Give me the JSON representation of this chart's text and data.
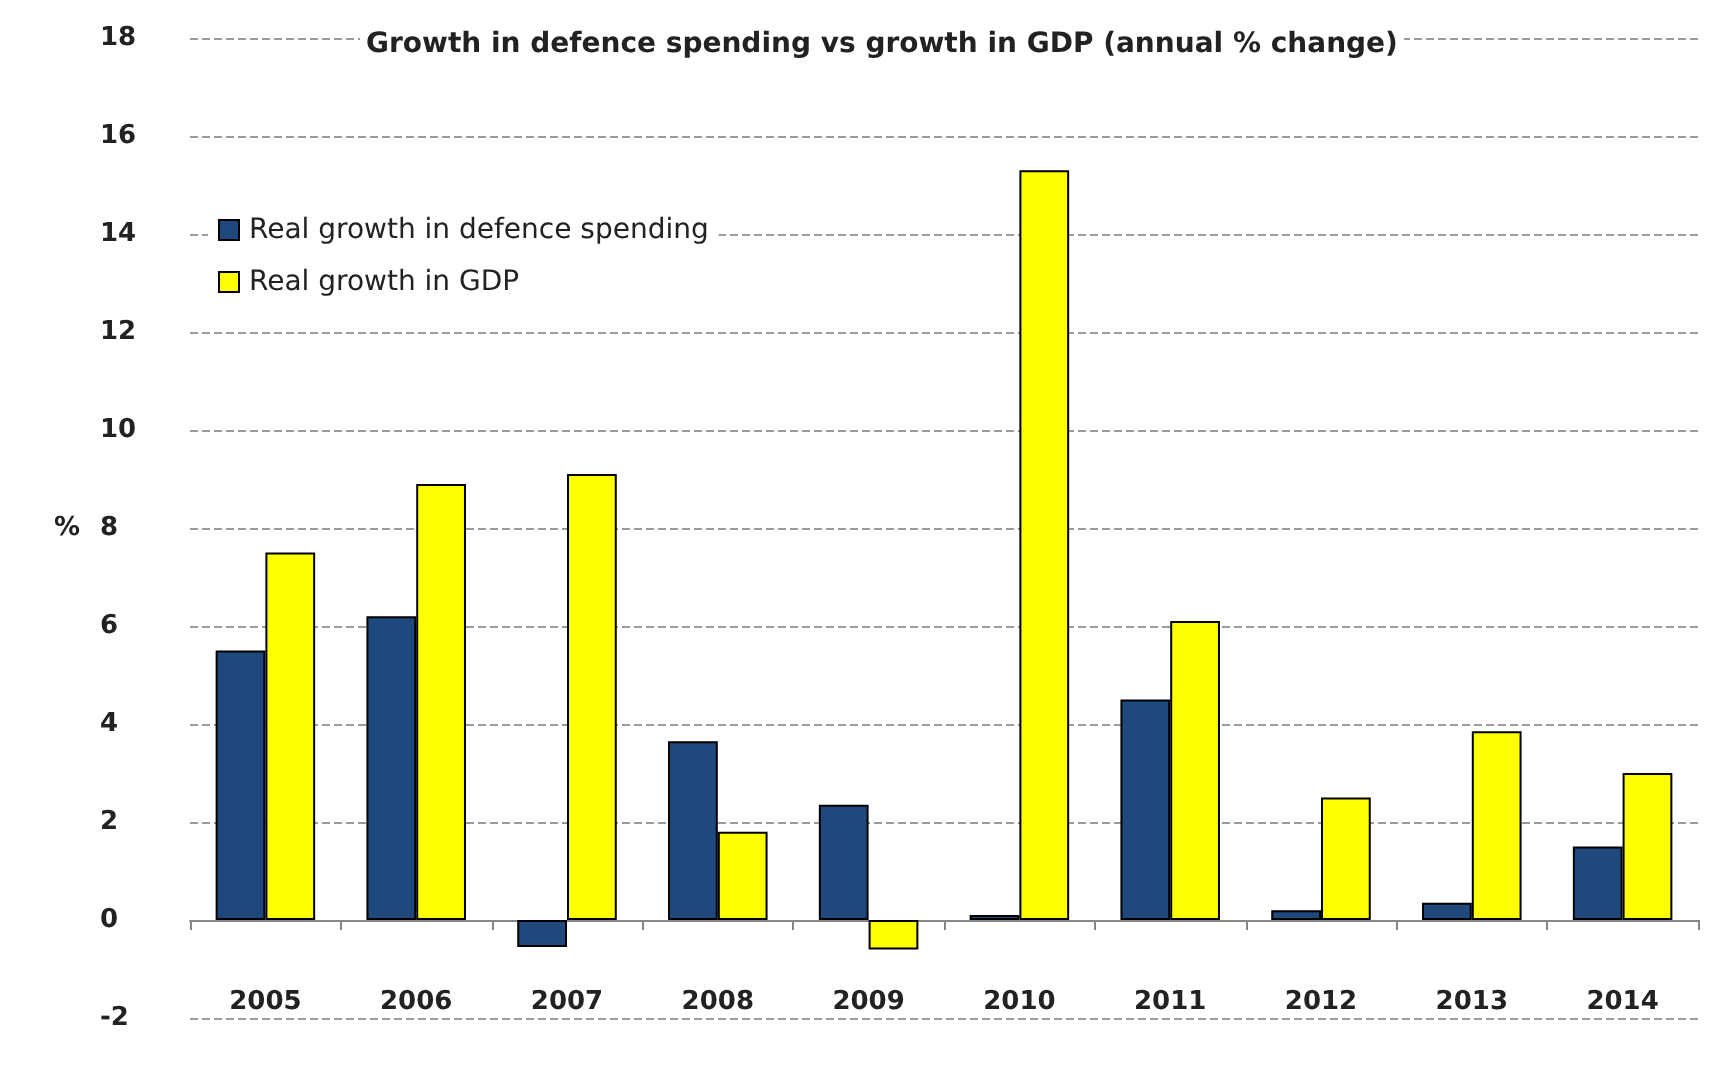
{
  "chart_data": {
    "type": "bar",
    "title": "Growth in defence spending vs growth in GDP (annual % change)",
    "ylabel": "%",
    "categories": [
      "2005",
      "2006",
      "2007",
      "2008",
      "2009",
      "2010",
      "2011",
      "2012",
      "2013",
      "2014"
    ],
    "series": [
      {
        "name": "Real growth in defence spending",
        "color": "#1f497d",
        "values": [
          5.5,
          6.2,
          -0.55,
          3.65,
          2.35,
          0.1,
          4.5,
          0.2,
          0.35,
          1.5
        ]
      },
      {
        "name": "Real growth in GDP",
        "color": "#ffff00",
        "values": [
          7.5,
          8.9,
          9.1,
          1.8,
          -0.6,
          15.3,
          6.1,
          2.5,
          3.85,
          3.0
        ]
      }
    ],
    "ylim": [
      -2,
      18
    ],
    "yticks": [
      -2,
      0,
      2,
      4,
      6,
      8,
      10,
      12,
      14,
      16,
      18
    ],
    "grid": "y",
    "legend": "top left"
  }
}
